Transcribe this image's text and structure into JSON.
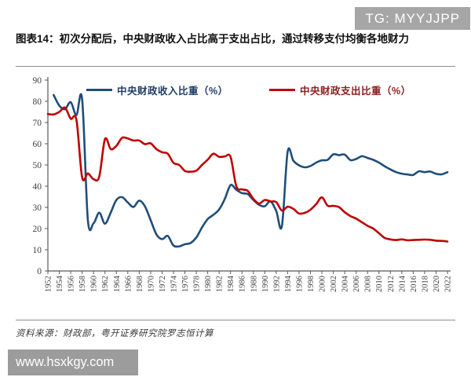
{
  "badge": {
    "text": "TG: MYYJJPP",
    "bg": "#a6a6a6"
  },
  "title": "图表14：初次分配后，中央财政收入占比高于支出占比，通过转移支付均衡各地财力",
  "source": "资料来源：财政部，粤开证券研究院罗志恒计算",
  "watermark": {
    "text": "www.hsxkgy.com",
    "bg": "#9c9c9c"
  },
  "chart_data": {
    "type": "line",
    "title": "",
    "xlabel": "",
    "ylabel": "",
    "ylim": [
      0,
      90
    ],
    "y_ticks": [
      0,
      10,
      20,
      30,
      40,
      50,
      60,
      70,
      80,
      90
    ],
    "x_tick_years": [
      1952,
      1954,
      1956,
      1958,
      1960,
      1962,
      1964,
      1966,
      1968,
      1970,
      1972,
      1974,
      1976,
      1978,
      1980,
      1982,
      1984,
      1986,
      1988,
      1990,
      1992,
      1994,
      1996,
      1998,
      2000,
      2002,
      2004,
      2006,
      2008,
      2010,
      2012,
      2014,
      2016,
      2018,
      2020,
      2022
    ],
    "grid": false,
    "legend_position": "top",
    "series": [
      {
        "name": "中央财政收入比重（%）",
        "color": "#1f4e79",
        "label_color": "#1f3c64",
        "start_year": 1953,
        "values": [
          83.0,
          78.0,
          76.3,
          79.6,
          73.5,
          81.0,
          24.2,
          22.5,
          27.5,
          22.3,
          27.5,
          33.5,
          34.8,
          32.3,
          30.2,
          33.2,
          30.5,
          24.0,
          17.3,
          15.0,
          16.5,
          12.0,
          11.6,
          12.6,
          13.2,
          15.8,
          20.5,
          24.5,
          26.5,
          29.0,
          34.0,
          40.5,
          38.3,
          36.7,
          36.3,
          33.5,
          31.2,
          30.5,
          32.8,
          28.3,
          21.2,
          56.2,
          52.0,
          49.8,
          48.9,
          49.5,
          51.1,
          52.2,
          52.4,
          55.0,
          54.6,
          54.9,
          52.3,
          52.8,
          54.1,
          53.3,
          52.4,
          51.1,
          49.4,
          47.9,
          46.6,
          45.9,
          45.5,
          45.3,
          47.0,
          46.6,
          46.9,
          45.8,
          45.6,
          46.6
        ]
      },
      {
        "name": "中央财政支出比重（%）",
        "color": "#c00000",
        "label_color": "#8b1e1e",
        "start_year": 1952,
        "values": [
          74.0,
          73.8,
          75.0,
          77.0,
          71.8,
          71.2,
          44.2,
          46.0,
          43.3,
          44.5,
          62.2,
          57.5,
          59.0,
          62.8,
          62.5,
          61.5,
          61.5,
          59.8,
          60.2,
          57.5,
          56.0,
          55.3,
          51.0,
          50.0,
          47.2,
          46.8,
          47.3,
          50.0,
          52.5,
          55.3,
          53.8,
          54.0,
          53.8,
          40.0,
          38.5,
          37.8,
          34.0,
          31.8,
          33.5,
          32.8,
          32.5,
          28.5,
          30.3,
          29.3,
          27.1,
          27.4,
          28.9,
          31.5,
          34.7,
          30.8,
          30.7,
          30.1,
          27.7,
          25.9,
          24.7,
          23.0,
          21.3,
          20.0,
          17.8,
          15.6,
          14.9,
          14.6,
          14.9,
          14.5,
          14.6,
          14.7,
          14.8,
          14.7,
          14.3,
          14.2,
          13.9
        ]
      }
    ]
  }
}
